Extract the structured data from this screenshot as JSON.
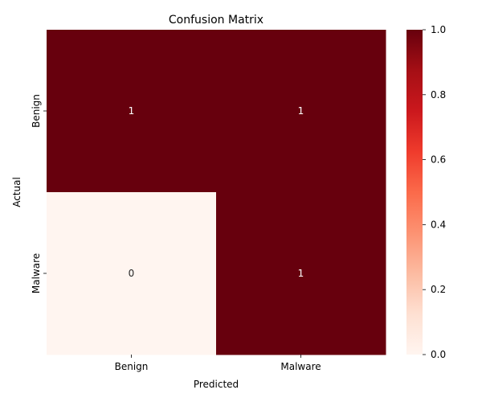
{
  "chart_data": {
    "type": "heatmap",
    "title": "Confusion Matrix",
    "xlabel": "Predicted",
    "ylabel": "Actual",
    "x_categories": [
      "Benign",
      "Malware"
    ],
    "y_categories": [
      "Benign",
      "Malware"
    ],
    "values": [
      [
        1,
        1
      ],
      [
        0,
        1
      ]
    ],
    "annotations": [
      [
        "1",
        "1"
      ],
      [
        "0",
        "1"
      ]
    ],
    "colormap": "Reds",
    "color_min": "#fff5f0",
    "color_max": "#67000d",
    "colorbar": {
      "range": [
        0.0,
        1.0
      ],
      "ticks": [
        "0.0",
        "0.2",
        "0.4",
        "0.6",
        "0.8",
        "1.0"
      ]
    }
  }
}
